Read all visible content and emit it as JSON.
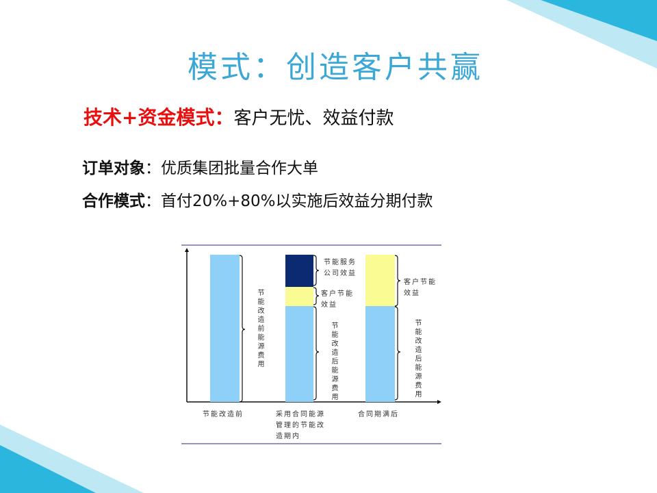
{
  "title": "模式：创造客户共赢",
  "headline": {
    "emphasis": "技术+资金模式：",
    "text": "客户无忧、效益付款"
  },
  "points": [
    {
      "label": "订单对象",
      "sep": "：",
      "text": "优质集团批量合作大单"
    },
    {
      "label": "合作模式",
      "sep": "：",
      "text": "首付20%+80%以实施后效益分期付款"
    }
  ],
  "diagram": {
    "categories": [
      "节能改造前",
      "采用合同能源管理的节能改造期内",
      "合同期满后"
    ],
    "segment_labels": {
      "before_cost": "节能改造前能源费用",
      "after_cost": "节能改造后能源费用",
      "esco_benefit": "节能服务公司效益",
      "client_benefit": "客户节能效益"
    },
    "colors": {
      "energy_cost": "#8fd0f8",
      "client_benefit": "#fbfb93",
      "esco_benefit": "#0b2a72"
    }
  },
  "colors": {
    "title": "#3aa7d6",
    "emphasis": "#e8100e",
    "corner": "#2bb6de"
  }
}
